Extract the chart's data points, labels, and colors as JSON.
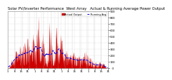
{
  "title": "Solar PV/Inverter Performance  West Array   Actual & Running Average Power Output",
  "legend_actual": "Actual Output",
  "legend_avg": "Running Avg",
  "bg_color": "#ffffff",
  "plot_bg": "#ffffff",
  "grid_color": "#bbbbbb",
  "bar_color": "#cc0000",
  "avg_color": "#0000dd",
  "ylim": [
    0,
    900
  ],
  "ytick_labels": [
    "900",
    "800",
    "700",
    "600",
    "500",
    "400",
    "300",
    "200",
    "100",
    "  0"
  ],
  "ytick_vals": [
    900,
    800,
    700,
    600,
    500,
    400,
    300,
    200,
    100,
    0
  ],
  "title_fontsize": 3.8,
  "axis_fontsize": 2.8,
  "num_points": 500,
  "avg_window": 40
}
